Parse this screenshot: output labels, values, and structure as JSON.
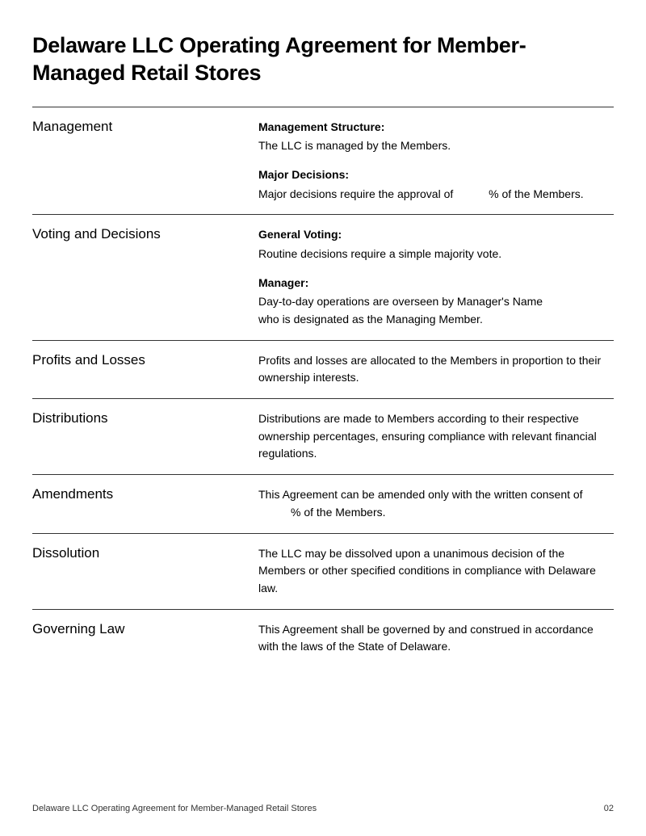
{
  "title": "Delaware LLC Operating Agreement for Member-Managed Retail Stores",
  "sections": {
    "management": {
      "heading": "Management",
      "sub1_heading": "Management Structure:",
      "sub1_text": "The LLC is managed by the Members.",
      "sub2_heading": "Major Decisions:",
      "sub2_prefix": "Major decisions require the approval of ",
      "sub2_suffix": "% of the Members."
    },
    "voting": {
      "heading": "Voting and Decisions",
      "sub1_heading": "General Voting:",
      "sub1_text": "Routine decisions require a simple majority vote.",
      "sub2_heading": "Manager:",
      "sub2_line1_prefix": "Day-to-day operations are overseen by ",
      "sub2_line1_placeholder": "Manager's Name",
      "sub2_line2": "who is designated as the Managing Member."
    },
    "profits": {
      "heading": "Profits and Losses",
      "text": "Profits and losses are allocated to the Members in proportion to their ownership interests."
    },
    "distributions": {
      "heading": "Distributions",
      "text": "Distributions are made to Members according to their respective ownership percentages, ensuring compliance with relevant financial regulations."
    },
    "amendments": {
      "heading": "Amendments",
      "text_prefix": "This Agreement can be amended only with the written consent of ",
      "text_suffix": "% of the Members."
    },
    "dissolution": {
      "heading": "Dissolution",
      "text": "The LLC may be dissolved upon a unanimous decision of the Members or other specified conditions in compliance with Delaware law."
    },
    "governing": {
      "heading": "Governing Law",
      "text": "This Agreement shall be governed by and construed in accordance with the laws of the State of Delaware."
    }
  },
  "footer": {
    "title": "Delaware LLC Operating Agreement for Member-Managed Retail Stores",
    "page": "02"
  },
  "colors": {
    "text": "#000000",
    "border": "#333333",
    "background": "#ffffff"
  }
}
